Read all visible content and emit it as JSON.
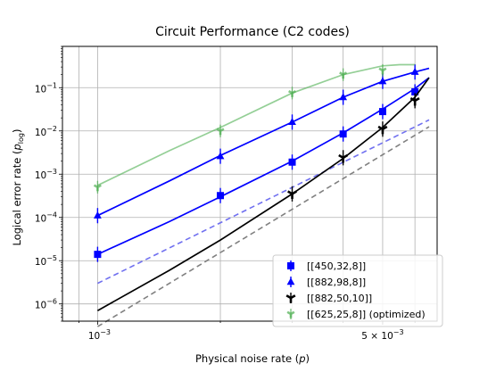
{
  "chart_data": {
    "type": "scatter",
    "title": "Circuit Performance (C2 codes)",
    "xlabel": "Physical noise rate (p)",
    "ylabel": "Logical error rate (p_log)",
    "x_scale": "log",
    "y_scale": "log",
    "xlim": [
      0.00082,
      0.0068
    ],
    "ylim": [
      4e-07,
      0.9
    ],
    "grid": true,
    "legend_position": "lower right",
    "x_tick_labels": [
      {
        "value": 0.001,
        "base": "10",
        "exp": "−3",
        "mult": ""
      },
      {
        "value": 0.005,
        "base": "10",
        "exp": "−3",
        "mult": "5 × "
      }
    ],
    "y_tick_labels": [
      {
        "value": 1e-06,
        "base": "10",
        "exp": "−6"
      },
      {
        "value": 1e-05,
        "base": "10",
        "exp": "−5"
      },
      {
        "value": 0.0001,
        "base": "10",
        "exp": "−4"
      },
      {
        "value": 0.001,
        "base": "10",
        "exp": "−3"
      },
      {
        "value": 0.01,
        "base": "10",
        "exp": "−2"
      },
      {
        "value": 0.1,
        "base": "10",
        "exp": "−1"
      }
    ],
    "series": [
      {
        "name": "[[450,32,8]]",
        "color": "#0000ff",
        "marker": "square",
        "x": [
          0.001,
          0.002,
          0.003,
          0.004,
          0.005,
          0.006
        ],
        "y": [
          1.4e-05,
          0.00032,
          0.0019,
          0.0085,
          0.028,
          0.08
        ],
        "yerr_factor": 1.5,
        "fit": {
          "x": [
            0.001,
            0.0015,
            0.002,
            0.003,
            0.004,
            0.005,
            0.006,
            0.0065
          ],
          "y": [
            1.4e-05,
            8e-05,
            0.0003,
            0.002,
            0.009,
            0.032,
            0.095,
            0.17
          ]
        }
      },
      {
        "name": "[[882,98,8]]",
        "color": "#0000ff",
        "marker": "triangle-up",
        "x": [
          0.001,
          0.002,
          0.003,
          0.004,
          0.005,
          0.006
        ],
        "y": [
          0.00011,
          0.0026,
          0.016,
          0.06,
          0.14,
          0.23
        ],
        "yerr_factor": 1.5,
        "fit": {
          "x": [
            0.001,
            0.0015,
            0.002,
            0.003,
            0.004,
            0.005,
            0.006,
            0.0065
          ],
          "y": [
            0.00011,
            0.0007,
            0.0027,
            0.016,
            0.06,
            0.14,
            0.23,
            0.28
          ]
        }
      },
      {
        "name": "[[882,50,10]]",
        "color": "#000000",
        "marker": "tri-down",
        "x": [
          0.003,
          0.004,
          0.005,
          0.006
        ],
        "y": [
          0.00035,
          0.0024,
          0.011,
          0.05
        ],
        "yerr_factor": 1.5,
        "fit": {
          "x": [
            0.001,
            0.0015,
            0.002,
            0.003,
            0.004,
            0.005,
            0.006,
            0.0065
          ],
          "y": [
            7e-07,
            6e-06,
            3e-05,
            0.00035,
            0.0023,
            0.012,
            0.06,
            0.17
          ]
        }
      },
      {
        "name": "[[625,25,8]] (optimized)",
        "color": "#4caf50",
        "marker": "tri-down",
        "x": [
          0.001,
          0.002,
          0.003,
          0.004,
          0.005
        ],
        "y": [
          0.0005,
          0.01,
          0.075,
          0.2,
          0.25
        ],
        "yerr_factor": 1.4,
        "fit": {
          "x": [
            0.001,
            0.0015,
            0.002,
            0.003,
            0.004,
            0.005,
            0.0055,
            0.006
          ],
          "y": [
            0.00055,
            0.0035,
            0.012,
            0.075,
            0.2,
            0.32,
            0.34,
            0.34
          ]
        }
      }
    ],
    "reference_lines": [
      {
        "style": "dashed",
        "color": "#7070f0",
        "x": [
          0.001,
          0.0065
        ],
        "y": [
          3e-06,
          0.018
        ]
      },
      {
        "style": "dashed",
        "color": "#808080",
        "x": [
          0.001,
          0.0065
        ],
        "y": [
          3e-07,
          0.0125
        ]
      }
    ]
  }
}
